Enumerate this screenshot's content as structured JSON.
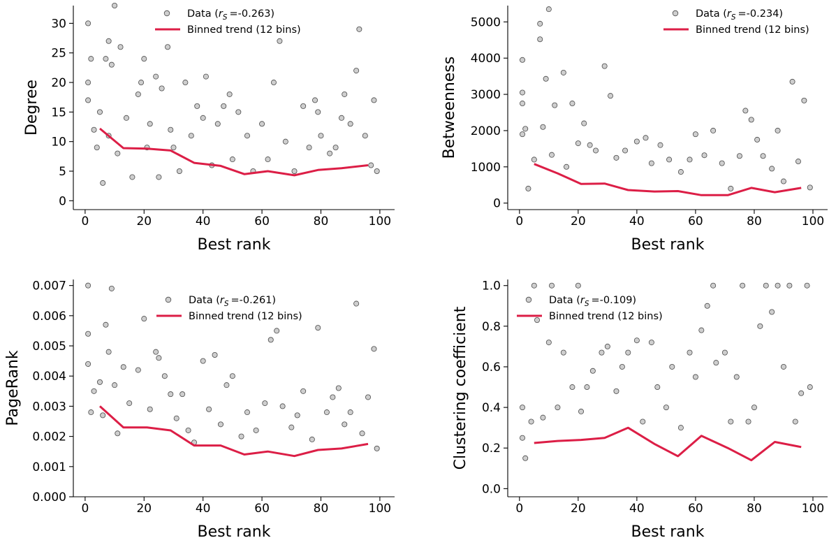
{
  "chart_data": [
    {
      "type": "scatter",
      "panel": "degree",
      "xlabel": "Best rank",
      "ylabel": "Degree",
      "xlim": [
        -4,
        105
      ],
      "ylim": [
        -1.5,
        33
      ],
      "xticks": [
        0,
        20,
        40,
        60,
        80,
        100
      ],
      "yticks": [
        0,
        5,
        10,
        15,
        20,
        25,
        30
      ],
      "x_tick_labels": [
        "0",
        "20",
        "40",
        "60",
        "80",
        "100"
      ],
      "y_tick_labels": [
        "0",
        "5",
        "10",
        "15",
        "20",
        "25",
        "30"
      ],
      "grid": false,
      "legend_position": "top-center",
      "legend": [
        {
          "label": "Data (rS =-0.263)",
          "label_main": "Data (",
          "r_symbol": "r",
          "r_sub": "S",
          "stat": "=-0.263)",
          "marker": "circle",
          "color": "#9e9e9e"
        },
        {
          "label": "Binned trend (12 bins)",
          "marker": "line",
          "color": "#dc1e46"
        }
      ],
      "series": [
        {
          "name": "Data",
          "kind": "scatter",
          "x": [
            1,
            1,
            1,
            2,
            3,
            4,
            5,
            6,
            7,
            8,
            8,
            9,
            10,
            11,
            12,
            14,
            16,
            18,
            19,
            20,
            21,
            22,
            24,
            25,
            26,
            28,
            29,
            30,
            32,
            34,
            36,
            38,
            40,
            41,
            43,
            45,
            47,
            49,
            50,
            52,
            55,
            57,
            60,
            62,
            64,
            66,
            68,
            71,
            74,
            76,
            78,
            79,
            80,
            83,
            85,
            87,
            88,
            90,
            92,
            93,
            95,
            97,
            98,
            99
          ],
          "y": [
            30,
            20,
            17,
            24,
            12,
            9,
            15,
            3,
            24,
            27,
            11,
            23,
            33,
            8,
            26,
            14,
            4,
            18,
            20,
            24,
            9,
            13,
            21,
            4,
            19,
            26,
            12,
            9,
            5,
            20,
            11,
            16,
            14,
            21,
            6,
            13,
            16,
            18,
            7,
            15,
            11,
            5,
            13,
            7,
            20,
            27,
            10,
            5,
            16,
            9,
            17,
            15,
            11,
            8,
            9,
            14,
            18,
            13,
            22,
            29,
            11,
            6,
            17,
            5
          ]
        },
        {
          "name": "Binned trend (12 bins)",
          "kind": "line",
          "x": [
            5,
            13,
            21,
            29,
            37,
            46,
            54,
            62,
            71,
            79,
            87,
            96
          ],
          "y": [
            12.2,
            8.9,
            8.8,
            8.5,
            6.4,
            5.9,
            4.5,
            5.0,
            4.3,
            5.2,
            5.5,
            6.0
          ]
        }
      ]
    },
    {
      "type": "scatter",
      "panel": "betweenness",
      "xlabel": "Best rank",
      "ylabel": "Betweenness",
      "xlim": [
        -4,
        105
      ],
      "ylim": [
        -180,
        5450
      ],
      "xticks": [
        0,
        20,
        40,
        60,
        80,
        100
      ],
      "yticks": [
        0,
        1000,
        2000,
        3000,
        4000,
        5000
      ],
      "x_tick_labels": [
        "0",
        "20",
        "40",
        "60",
        "80",
        "100"
      ],
      "y_tick_labels": [
        "0",
        "1000",
        "2000",
        "3000",
        "4000",
        "5000"
      ],
      "grid": false,
      "legend_position": "top-right",
      "legend": [
        {
          "label": "Data (rS =-0.234)",
          "label_main": "Data (",
          "r_symbol": "r",
          "r_sub": "S",
          "stat": "=-0.234)",
          "marker": "circle",
          "color": "#9e9e9e"
        },
        {
          "label": "Binned trend (12 bins)",
          "marker": "line",
          "color": "#dc1e46"
        }
      ],
      "series": [
        {
          "name": "Data",
          "kind": "scatter",
          "x": [
            1,
            1,
            1,
            1,
            2,
            3,
            5,
            7,
            7,
            8,
            9,
            10,
            11,
            12,
            15,
            16,
            18,
            20,
            22,
            24,
            26,
            29,
            31,
            33,
            36,
            40,
            43,
            45,
            48,
            51,
            55,
            58,
            60,
            63,
            66,
            69,
            72,
            75,
            77,
            79,
            81,
            83,
            86,
            88,
            90,
            93,
            95,
            97,
            99
          ],
          "y": [
            3950,
            3050,
            2750,
            1900,
            2050,
            400,
            1200,
            4950,
            4520,
            2100,
            3430,
            5350,
            1330,
            2700,
            3600,
            1000,
            2750,
            1650,
            2200,
            1600,
            1450,
            3780,
            2960,
            1250,
            1450,
            1700,
            1800,
            1100,
            1600,
            1200,
            860,
            1200,
            1900,
            1320,
            2000,
            1100,
            400,
            1300,
            2550,
            2300,
            1750,
            1300,
            950,
            2000,
            600,
            3350,
            1150,
            2830,
            430
          ],
          "note": "approximate readings"
        },
        {
          "name": "Binned trend (12 bins)",
          "kind": "line",
          "x": [
            5,
            13,
            21,
            29,
            37,
            46,
            54,
            62,
            71,
            79,
            87,
            96
          ],
          "y": [
            1080,
            820,
            530,
            540,
            360,
            320,
            330,
            220,
            220,
            420,
            300,
            420
          ]
        }
      ]
    },
    {
      "type": "scatter",
      "panel": "pagerank",
      "xlabel": "Best rank",
      "ylabel": "PageRank",
      "xlim": [
        -4,
        105
      ],
      "ylim": [
        0,
        0.0072
      ],
      "xticks": [
        0,
        20,
        40,
        60,
        80,
        100
      ],
      "yticks": [
        0,
        0.001,
        0.002,
        0.003,
        0.004,
        0.005,
        0.006,
        0.007
      ],
      "x_tick_labels": [
        "0",
        "20",
        "40",
        "60",
        "80",
        "100"
      ],
      "y_tick_labels": [
        "0.000",
        "0.001",
        "0.002",
        "0.003",
        "0.004",
        "0.005",
        "0.006",
        "0.007"
      ],
      "grid": false,
      "legend_position": "top-center",
      "legend": [
        {
          "label": "Data (rS =-0.261)",
          "label_main": "Data (",
          "r_symbol": "r",
          "r_sub": "S",
          "stat": "=-0.261)",
          "marker": "circle",
          "color": "#9e9e9e"
        },
        {
          "label": "Binned trend (12 bins)",
          "marker": "line",
          "color": "#dc1e46"
        }
      ],
      "series": [
        {
          "name": "Data",
          "kind": "scatter",
          "x": [
            1,
            1,
            1,
            2,
            3,
            5,
            6,
            7,
            8,
            9,
            10,
            11,
            13,
            15,
            18,
            20,
            22,
            24,
            25,
            27,
            29,
            31,
            33,
            35,
            37,
            40,
            42,
            44,
            46,
            48,
            50,
            53,
            55,
            58,
            61,
            63,
            65,
            67,
            70,
            72,
            74,
            77,
            79,
            82,
            84,
            86,
            88,
            90,
            92,
            94,
            96,
            98,
            99
          ],
          "y": [
            0.007,
            0.0054,
            0.0044,
            0.0028,
            0.0035,
            0.0038,
            0.0027,
            0.0057,
            0.0048,
            0.0069,
            0.0037,
            0.0021,
            0.0043,
            0.0031,
            0.0042,
            0.0059,
            0.0029,
            0.0048,
            0.0046,
            0.004,
            0.0034,
            0.0026,
            0.0034,
            0.0022,
            0.0018,
            0.0045,
            0.0029,
            0.0047,
            0.0024,
            0.0037,
            0.004,
            0.002,
            0.0028,
            0.0022,
            0.0031,
            0.0052,
            0.0055,
            0.003,
            0.0023,
            0.0027,
            0.0035,
            0.0019,
            0.0056,
            0.0028,
            0.0033,
            0.0036,
            0.0024,
            0.0028,
            0.0064,
            0.0021,
            0.0033,
            0.0049,
            0.0016
          ],
          "note": "approximate readings"
        },
        {
          "name": "Binned trend (12 bins)",
          "kind": "line",
          "x": [
            5,
            13,
            21,
            29,
            37,
            46,
            54,
            62,
            71,
            79,
            87,
            96
          ],
          "y": [
            0.003,
            0.0023,
            0.0023,
            0.0022,
            0.0017,
            0.0017,
            0.0014,
            0.0015,
            0.00135,
            0.00155,
            0.0016,
            0.00175
          ]
        }
      ]
    },
    {
      "type": "scatter",
      "panel": "clustering",
      "xlabel": "Best rank",
      "ylabel": "Clustering coefficient",
      "xlim": [
        -4,
        105
      ],
      "ylim": [
        -0.04,
        1.03
      ],
      "xticks": [
        0,
        20,
        40,
        60,
        80,
        100
      ],
      "yticks": [
        0,
        0.2,
        0.4,
        0.6,
        0.8,
        1.0
      ],
      "x_tick_labels": [
        "0",
        "20",
        "40",
        "60",
        "80",
        "100"
      ],
      "y_tick_labels": [
        "0.0",
        "0.2",
        "0.4",
        "0.6",
        "0.8",
        "1.0"
      ],
      "grid": false,
      "legend_position": "top-left",
      "legend": [
        {
          "label": "Data (rS =-0.109)",
          "label_main": "Data (",
          "r_symbol": "r",
          "r_sub": "S",
          "stat": "=-0.109)",
          "marker": "circle",
          "color": "#9e9e9e"
        },
        {
          "label": "Binned trend (12 bins)",
          "marker": "line",
          "color": "#dc1e46"
        }
      ],
      "series": [
        {
          "name": "Data",
          "kind": "scatter",
          "x": [
            1,
            1,
            2,
            4,
            5,
            6,
            8,
            10,
            11,
            13,
            15,
            18,
            20,
            21,
            23,
            25,
            28,
            30,
            33,
            35,
            37,
            40,
            42,
            45,
            47,
            50,
            52,
            55,
            58,
            60,
            62,
            64,
            66,
            67,
            70,
            72,
            74,
            76,
            78,
            80,
            82,
            84,
            86,
            88,
            90,
            92,
            94,
            96,
            98,
            99
          ],
          "y": [
            0.4,
            0.25,
            0.15,
            0.33,
            1.0,
            0.83,
            0.35,
            0.72,
            1.0,
            0.4,
            0.67,
            0.5,
            1.0,
            0.38,
            0.5,
            0.58,
            0.67,
            0.7,
            0.48,
            0.6,
            0.67,
            0.73,
            0.33,
            0.72,
            0.5,
            0.4,
            0.6,
            0.3,
            0.67,
            0.55,
            0.78,
            0.9,
            1.0,
            0.62,
            0.67,
            0.33,
            0.55,
            1.0,
            0.33,
            0.4,
            0.8,
            1.0,
            0.87,
            1.0,
            0.6,
            1.0,
            0.33,
            0.47,
            1.0,
            0.5
          ],
          "note": "approximate readings"
        },
        {
          "name": "Binned trend (12 bins)",
          "kind": "line",
          "x": [
            5,
            13,
            21,
            29,
            37,
            46,
            54,
            62,
            71,
            79,
            87,
            96
          ],
          "y": [
            0.225,
            0.235,
            0.24,
            0.25,
            0.3,
            0.22,
            0.16,
            0.26,
            0.2,
            0.14,
            0.23,
            0.205
          ]
        }
      ]
    }
  ]
}
